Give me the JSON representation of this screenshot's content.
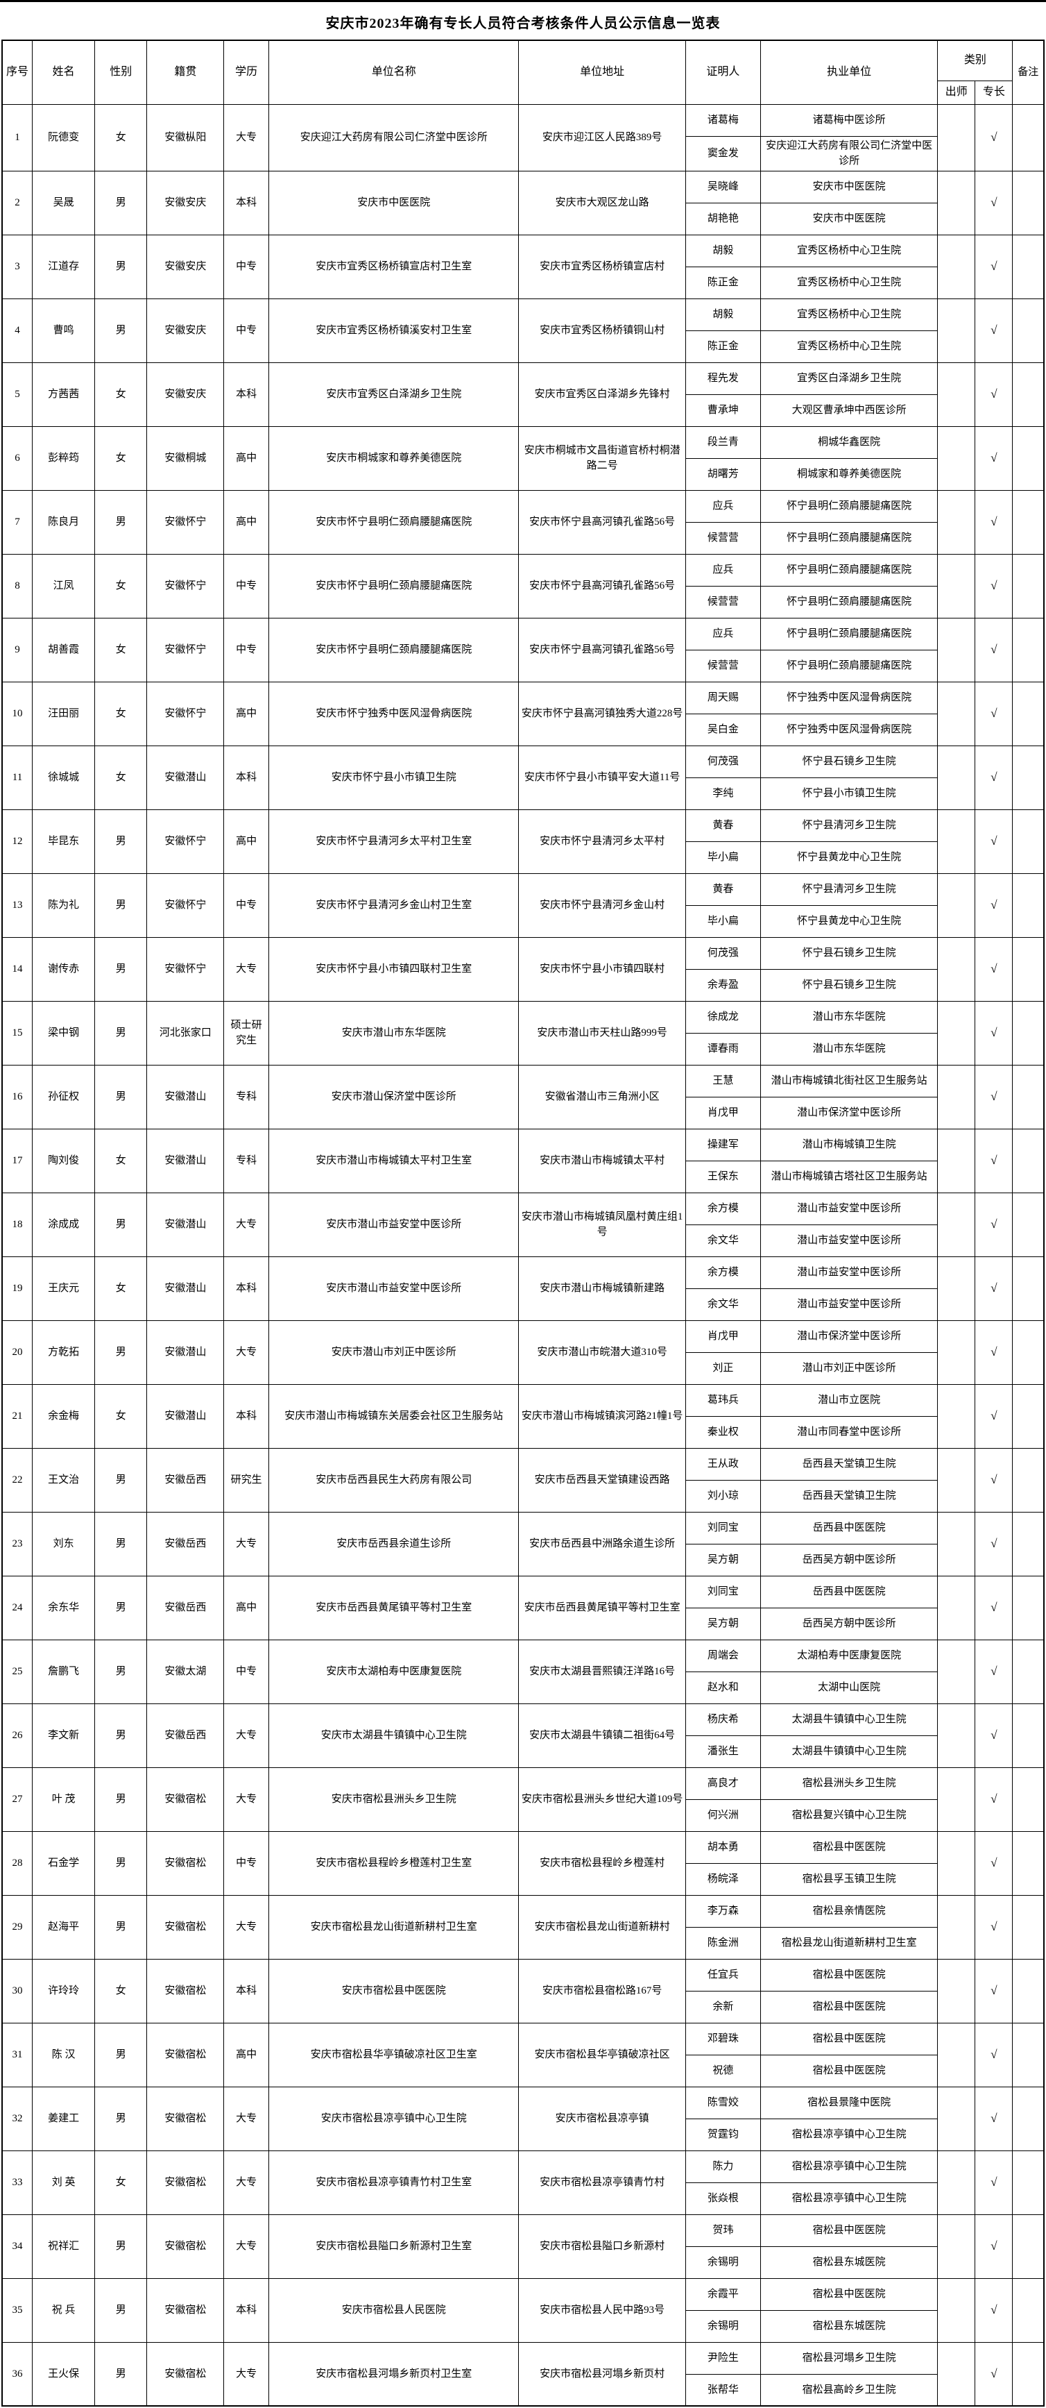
{
  "title": "安庆市2023年确有专长人员符合考核条件人员公示信息一览表",
  "check_mark": "√",
  "columns": {
    "no": "序号",
    "name": "姓名",
    "gender": "性别",
    "origin": "籍贯",
    "education": "学历",
    "unit": "单位名称",
    "address": "单位地址",
    "certifier": "证明人",
    "practice_org": "执业单位",
    "category": "类别",
    "chushi": "出师",
    "zhuanchang": "专长",
    "remark": "备注"
  },
  "rows": [
    {
      "no": "1",
      "name": "阮德变",
      "gender": "女",
      "origin": "安徽枞阳",
      "education": "大专",
      "unit": "安庆迎江大药房有限公司仁济堂中医诊所",
      "address": "安庆市迎江区人民路389号",
      "certs": [
        {
          "person": "诸葛梅",
          "org": "诸葛梅中医诊所"
        },
        {
          "person": "窦金发",
          "org": "安庆迎江大药房有限公司仁济堂中医诊所"
        }
      ],
      "chushi": "",
      "zhuanchang": "√",
      "remark": ""
    },
    {
      "no": "2",
      "name": "吴晟",
      "gender": "男",
      "origin": "安徽安庆",
      "education": "本科",
      "unit": "安庆市中医医院",
      "address": "安庆市大观区龙山路",
      "certs": [
        {
          "person": "吴晓峰",
          "org": "安庆市中医医院"
        },
        {
          "person": "胡艳艳",
          "org": "安庆市中医医院"
        }
      ],
      "chushi": "",
      "zhuanchang": "√",
      "remark": ""
    },
    {
      "no": "3",
      "name": "江道存",
      "gender": "男",
      "origin": "安徽安庆",
      "education": "中专",
      "unit": "安庆市宜秀区杨桥镇宣店村卫生室",
      "address": "安庆市宜秀区杨桥镇宣店村",
      "certs": [
        {
          "person": "胡毅",
          "org": "宜秀区杨桥中心卫生院"
        },
        {
          "person": "陈正金",
          "org": "宜秀区杨桥中心卫生院"
        }
      ],
      "chushi": "",
      "zhuanchang": "√",
      "remark": ""
    },
    {
      "no": "4",
      "name": "曹鸣",
      "gender": "男",
      "origin": "安徽安庆",
      "education": "中专",
      "unit": "安庆市宜秀区杨桥镇溪安村卫生室",
      "address": "安庆市宜秀区杨桥镇铜山村",
      "certs": [
        {
          "person": "胡毅",
          "org": "宜秀区杨桥中心卫生院"
        },
        {
          "person": "陈正金",
          "org": "宜秀区杨桥中心卫生院"
        }
      ],
      "chushi": "",
      "zhuanchang": "√",
      "remark": ""
    },
    {
      "no": "5",
      "name": "方茜茜",
      "gender": "女",
      "origin": "安徽安庆",
      "education": "本科",
      "unit": "安庆市宜秀区白泽湖乡卫生院",
      "address": "安庆市宜秀区白泽湖乡先锋村",
      "certs": [
        {
          "person": "程先发",
          "org": "宜秀区白泽湖乡卫生院"
        },
        {
          "person": "曹承坤",
          "org": "大观区曹承坤中西医诊所"
        }
      ],
      "chushi": "",
      "zhuanchang": "√",
      "remark": ""
    },
    {
      "no": "6",
      "name": "彭粹筠",
      "gender": "女",
      "origin": "安徽桐城",
      "education": "高中",
      "unit": "安庆市桐城家和尊养美德医院",
      "address": "安庆市桐城市文昌街道官桥村桐潜路二号",
      "certs": [
        {
          "person": "段兰青",
          "org": "桐城华鑫医院"
        },
        {
          "person": "胡曙芳",
          "org": "桐城家和尊养美德医院"
        }
      ],
      "chushi": "",
      "zhuanchang": "√",
      "remark": ""
    },
    {
      "no": "7",
      "name": "陈良月",
      "gender": "男",
      "origin": "安徽怀宁",
      "education": "高中",
      "unit": "安庆市怀宁县明仁颈肩腰腿痛医院",
      "address": "安庆市怀宁县高河镇孔雀路56号",
      "certs": [
        {
          "person": "应兵",
          "org": "怀宁县明仁颈肩腰腿痛医院"
        },
        {
          "person": "候营营",
          "org": "怀宁县明仁颈肩腰腿痛医院"
        }
      ],
      "chushi": "",
      "zhuanchang": "√",
      "remark": ""
    },
    {
      "no": "8",
      "name": "江凤",
      "gender": "女",
      "origin": "安徽怀宁",
      "education": "中专",
      "unit": "安庆市怀宁县明仁颈肩腰腿痛医院",
      "address": "安庆市怀宁县高河镇孔雀路56号",
      "certs": [
        {
          "person": "应兵",
          "org": "怀宁县明仁颈肩腰腿痛医院"
        },
        {
          "person": "候营营",
          "org": "怀宁县明仁颈肩腰腿痛医院"
        }
      ],
      "chushi": "",
      "zhuanchang": "√",
      "remark": ""
    },
    {
      "no": "9",
      "name": "胡善霞",
      "gender": "女",
      "origin": "安徽怀宁",
      "education": "中专",
      "unit": "安庆市怀宁县明仁颈肩腰腿痛医院",
      "address": "安庆市怀宁县高河镇孔雀路56号",
      "certs": [
        {
          "person": "应兵",
          "org": "怀宁县明仁颈肩腰腿痛医院"
        },
        {
          "person": "候营营",
          "org": "怀宁县明仁颈肩腰腿痛医院"
        }
      ],
      "chushi": "",
      "zhuanchang": "√",
      "remark": ""
    },
    {
      "no": "10",
      "name": "汪田丽",
      "gender": "女",
      "origin": "安徽怀宁",
      "education": "高中",
      "unit": "安庆市怀宁独秀中医风湿骨病医院",
      "address": "安庆市怀宁县高河镇独秀大道228号",
      "certs": [
        {
          "person": "周天赐",
          "org": "怀宁独秀中医风湿骨病医院"
        },
        {
          "person": "吴白金",
          "org": "怀宁独秀中医风湿骨病医院"
        }
      ],
      "chushi": "",
      "zhuanchang": "√",
      "remark": ""
    },
    {
      "no": "11",
      "name": "徐城城",
      "gender": "女",
      "origin": "安徽潜山",
      "education": "本科",
      "unit": "安庆市怀宁县小市镇卫生院",
      "address": "安庆市怀宁县小市镇平安大道11号",
      "certs": [
        {
          "person": "何茂强",
          "org": "怀宁县石镜乡卫生院"
        },
        {
          "person": "李纯",
          "org": "怀宁县小市镇卫生院"
        }
      ],
      "chushi": "",
      "zhuanchang": "√",
      "remark": ""
    },
    {
      "no": "12",
      "name": "毕昆东",
      "gender": "男",
      "origin": "安徽怀宁",
      "education": "高中",
      "unit": "安庆市怀宁县清河乡太平村卫生室",
      "address": "安庆市怀宁县清河乡太平村",
      "certs": [
        {
          "person": "黄春",
          "org": "怀宁县清河乡卫生院"
        },
        {
          "person": "毕小扁",
          "org": "怀宁县黄龙中心卫生院"
        }
      ],
      "chushi": "",
      "zhuanchang": "√",
      "remark": ""
    },
    {
      "no": "13",
      "name": "陈为礼",
      "gender": "男",
      "origin": "安徽怀宁",
      "education": "中专",
      "unit": "安庆市怀宁县清河乡金山村卫生室",
      "address": "安庆市怀宁县清河乡金山村",
      "certs": [
        {
          "person": "黄春",
          "org": "怀宁县清河乡卫生院"
        },
        {
          "person": "毕小扁",
          "org": "怀宁县黄龙中心卫生院"
        }
      ],
      "chushi": "",
      "zhuanchang": "√",
      "remark": ""
    },
    {
      "no": "14",
      "name": "谢传赤",
      "gender": "男",
      "origin": "安徽怀宁",
      "education": "大专",
      "unit": "安庆市怀宁县小市镇四联村卫生室",
      "address": "安庆市怀宁县小市镇四联村",
      "certs": [
        {
          "person": "何茂强",
          "org": "怀宁县石镜乡卫生院"
        },
        {
          "person": "余寿盈",
          "org": "怀宁县石镜乡卫生院"
        }
      ],
      "chushi": "",
      "zhuanchang": "√",
      "remark": ""
    },
    {
      "no": "15",
      "name": "梁中钢",
      "gender": "男",
      "origin": "河北张家口",
      "education": "硕士研究生",
      "unit": "安庆市潜山市东华医院",
      "address": "安庆市潜山市天柱山路999号",
      "certs": [
        {
          "person": "徐成龙",
          "org": "潜山市东华医院"
        },
        {
          "person": "谭春雨",
          "org": "潜山市东华医院"
        }
      ],
      "chushi": "",
      "zhuanchang": "√",
      "remark": ""
    },
    {
      "no": "16",
      "name": "孙征权",
      "gender": "男",
      "origin": "安徽潜山",
      "education": "专科",
      "unit": "安庆市潜山保济堂中医诊所",
      "address": "安徽省潜山市三角洲小区",
      "certs": [
        {
          "person": "王慧",
          "org": "潜山市梅城镇北街社区卫生服务站"
        },
        {
          "person": "肖戊甲",
          "org": "潜山市保济堂中医诊所"
        }
      ],
      "chushi": "",
      "zhuanchang": "√",
      "remark": ""
    },
    {
      "no": "17",
      "name": "陶刘俊",
      "gender": "女",
      "origin": "安徽潜山",
      "education": "专科",
      "unit": "安庆市潜山市梅城镇太平村卫生室",
      "address": "安庆市潜山市梅城镇太平村",
      "certs": [
        {
          "person": "操建军",
          "org": "潜山市梅城镇卫生院"
        },
        {
          "person": "王保东",
          "org": "潜山市梅城镇古塔社区卫生服务站"
        }
      ],
      "chushi": "",
      "zhuanchang": "√",
      "remark": ""
    },
    {
      "no": "18",
      "name": "涂成成",
      "gender": "男",
      "origin": "安徽潜山",
      "education": "大专",
      "unit": "安庆市潜山市益安堂中医诊所",
      "address": "安庆市潜山市梅城镇凤凰村黄庄组1号",
      "certs": [
        {
          "person": "余方模",
          "org": "潜山市益安堂中医诊所"
        },
        {
          "person": "余文华",
          "org": "潜山市益安堂中医诊所"
        }
      ],
      "chushi": "",
      "zhuanchang": "√",
      "remark": ""
    },
    {
      "no": "19",
      "name": "王庆元",
      "gender": "女",
      "origin": "安徽潜山",
      "education": "本科",
      "unit": "安庆市潜山市益安堂中医诊所",
      "address": "安庆市潜山市梅城镇新建路",
      "certs": [
        {
          "person": "余方模",
          "org": "潜山市益安堂中医诊所"
        },
        {
          "person": "余文华",
          "org": "潜山市益安堂中医诊所"
        }
      ],
      "chushi": "",
      "zhuanchang": "√",
      "remark": ""
    },
    {
      "no": "20",
      "name": "方乾拓",
      "gender": "男",
      "origin": "安徽潜山",
      "education": "大专",
      "unit": "安庆市潜山市刘正中医诊所",
      "address": "安庆市潜山市皖潜大道310号",
      "certs": [
        {
          "person": "肖戊甲",
          "org": "潜山市保济堂中医诊所"
        },
        {
          "person": "刘正",
          "org": "潜山市刘正中医诊所"
        }
      ],
      "chushi": "",
      "zhuanchang": "√",
      "remark": ""
    },
    {
      "no": "21",
      "name": "余金梅",
      "gender": "女",
      "origin": "安徽潜山",
      "education": "本科",
      "unit": "安庆市潜山市梅城镇东关居委会社区卫生服务站",
      "address": "安庆市潜山市梅城镇滨河路21幢1号",
      "certs": [
        {
          "person": "葛玮兵",
          "org": "潜山市立医院"
        },
        {
          "person": "秦业权",
          "org": "潜山市同春堂中医诊所"
        }
      ],
      "chushi": "",
      "zhuanchang": "√",
      "remark": ""
    },
    {
      "no": "22",
      "name": "王文治",
      "gender": "男",
      "origin": "安徽岳西",
      "education": "研究生",
      "unit": "安庆市岳西县民生大药房有限公司",
      "address": "安庆市岳西县天堂镇建设西路",
      "certs": [
        {
          "person": "王从政",
          "org": "岳西县天堂镇卫生院"
        },
        {
          "person": "刘小琼",
          "org": "岳西县天堂镇卫生院"
        }
      ],
      "chushi": "",
      "zhuanchang": "√",
      "remark": ""
    },
    {
      "no": "23",
      "name": "刘东",
      "gender": "男",
      "origin": "安徽岳西",
      "education": "大专",
      "unit": "安庆市岳西县余道生诊所",
      "address": "安庆市岳西县中洲路余道生诊所",
      "certs": [
        {
          "person": "刘同宝",
          "org": "岳西县中医医院"
        },
        {
          "person": "吴方朝",
          "org": "岳西吴方朝中医诊所"
        }
      ],
      "chushi": "",
      "zhuanchang": "√",
      "remark": ""
    },
    {
      "no": "24",
      "name": "余东华",
      "gender": "男",
      "origin": "安徽岳西",
      "education": "高中",
      "unit": "安庆市岳西县黄尾镇平等村卫生室",
      "address": "安庆市岳西县黄尾镇平等村卫生室",
      "certs": [
        {
          "person": "刘同宝",
          "org": "岳西县中医医院"
        },
        {
          "person": "吴方朝",
          "org": "岳西吴方朝中医诊所"
        }
      ],
      "chushi": "",
      "zhuanchang": "√",
      "remark": ""
    },
    {
      "no": "25",
      "name": "詹鹏飞",
      "gender": "男",
      "origin": "安徽太湖",
      "education": "中专",
      "unit": "安庆市太湖柏寿中医康复医院",
      "address": "安庆市太湖县晋熙镇汪洋路16号",
      "certs": [
        {
          "person": "周端会",
          "org": "太湖柏寿中医康复医院"
        },
        {
          "person": "赵水和",
          "org": "太湖中山医院"
        }
      ],
      "chushi": "",
      "zhuanchang": "√",
      "remark": ""
    },
    {
      "no": "26",
      "name": "李文新",
      "gender": "男",
      "origin": "安徽岳西",
      "education": "大专",
      "unit": "安庆市太湖县牛镇镇中心卫生院",
      "address": "安庆市太湖县牛镇镇二祖街64号",
      "certs": [
        {
          "person": "杨庆希",
          "org": "太湖县牛镇镇中心卫生院"
        },
        {
          "person": "潘张生",
          "org": "太湖县牛镇镇中心卫生院"
        }
      ],
      "chushi": "",
      "zhuanchang": "√",
      "remark": ""
    },
    {
      "no": "27",
      "name": "叶 茂",
      "gender": "男",
      "origin": "安徽宿松",
      "education": "大专",
      "unit": "安庆市宿松县洲头乡卫生院",
      "address": "安庆市宿松县洲头乡世纪大道109号",
      "certs": [
        {
          "person": "高良才",
          "org": "宿松县洲头乡卫生院"
        },
        {
          "person": "何兴洲",
          "org": "宿松县复兴镇中心卫生院"
        }
      ],
      "chushi": "",
      "zhuanchang": "√",
      "remark": ""
    },
    {
      "no": "28",
      "name": "石金学",
      "gender": "男",
      "origin": "安徽宿松",
      "education": "中专",
      "unit": "安庆市宿松县程岭乡橙莲村卫生室",
      "address": "安庆市宿松县程岭乡橙莲村",
      "certs": [
        {
          "person": "胡本勇",
          "org": "宿松县中医医院"
        },
        {
          "person": "杨皖泽",
          "org": "宿松县孚玉镇卫生院"
        }
      ],
      "chushi": "",
      "zhuanchang": "√",
      "remark": ""
    },
    {
      "no": "29",
      "name": "赵海平",
      "gender": "男",
      "origin": "安徽宿松",
      "education": "大专",
      "unit": "安庆市宿松县龙山街道新耕村卫生室",
      "address": "安庆市宿松县龙山街道新耕村",
      "certs": [
        {
          "person": "李万森",
          "org": "宿松县亲情医院"
        },
        {
          "person": "陈金洲",
          "org": "宿松县龙山街道新耕村卫生室"
        }
      ],
      "chushi": "",
      "zhuanchang": "√",
      "remark": ""
    },
    {
      "no": "30",
      "name": "许玲玲",
      "gender": "女",
      "origin": "安徽宿松",
      "education": "本科",
      "unit": "安庆市宿松县中医医院",
      "address": "安庆市宿松县宿松路167号",
      "certs": [
        {
          "person": "任宜兵",
          "org": "宿松县中医医院"
        },
        {
          "person": "余新",
          "org": "宿松县中医医院"
        }
      ],
      "chushi": "",
      "zhuanchang": "√",
      "remark": ""
    },
    {
      "no": "31",
      "name": "陈 汉",
      "gender": "男",
      "origin": "安徽宿松",
      "education": "高中",
      "unit": "安庆市宿松县华亭镇破凉社区卫生室",
      "address": "安庆市宿松县华亭镇破凉社区",
      "certs": [
        {
          "person": "邓碧珠",
          "org": "宿松县中医医院"
        },
        {
          "person": "祝德",
          "org": "宿松县中医医院"
        }
      ],
      "chushi": "",
      "zhuanchang": "√",
      "remark": ""
    },
    {
      "no": "32",
      "name": "姜建工",
      "gender": "男",
      "origin": "安徽宿松",
      "education": "大专",
      "unit": "安庆市宿松县凉亭镇中心卫生院",
      "address": "安庆市宿松县凉亭镇",
      "certs": [
        {
          "person": "陈雪姣",
          "org": "宿松县景隆中医院"
        },
        {
          "person": "贺霆钧",
          "org": "宿松县凉亭镇中心卫生院"
        }
      ],
      "chushi": "",
      "zhuanchang": "√",
      "remark": ""
    },
    {
      "no": "33",
      "name": "刘 英",
      "gender": "女",
      "origin": "安徽宿松",
      "education": "大专",
      "unit": "安庆市宿松县凉亭镇青竹村卫生室",
      "address": "安庆市宿松县凉亭镇青竹村",
      "certs": [
        {
          "person": "陈力",
          "org": "宿松县凉亭镇中心卫生院"
        },
        {
          "person": "张焱根",
          "org": "宿松县凉亭镇中心卫生院"
        }
      ],
      "chushi": "",
      "zhuanchang": "√",
      "remark": ""
    },
    {
      "no": "34",
      "name": "祝祥汇",
      "gender": "男",
      "origin": "安徽宿松",
      "education": "大专",
      "unit": "安庆市宿松县隘口乡新源村卫生室",
      "address": "安庆市宿松县隘口乡新源村",
      "certs": [
        {
          "person": "贺玮",
          "org": "宿松县中医医院"
        },
        {
          "person": "余锡明",
          "org": "宿松县东城医院"
        }
      ],
      "chushi": "",
      "zhuanchang": "√",
      "remark": ""
    },
    {
      "no": "35",
      "name": "祝 兵",
      "gender": "男",
      "origin": "安徽宿松",
      "education": "本科",
      "unit": "安庆市宿松县人民医院",
      "address": "安庆市宿松县人民中路93号",
      "certs": [
        {
          "person": "余霞平",
          "org": "宿松县中医医院"
        },
        {
          "person": "余锡明",
          "org": "宿松县东城医院"
        }
      ],
      "chushi": "",
      "zhuanchang": "√",
      "remark": ""
    },
    {
      "no": "36",
      "name": "王火保",
      "gender": "男",
      "origin": "安徽宿松",
      "education": "大专",
      "unit": "安庆市宿松县河塌乡新页村卫生室",
      "address": "安庆市宿松县河塌乡新页村",
      "certs": [
        {
          "person": "尹险生",
          "org": "宿松县河塌乡卫生院"
        },
        {
          "person": "张帮华",
          "org": "宿松县高岭乡卫生院"
        }
      ],
      "chushi": "",
      "zhuanchang": "√",
      "remark": ""
    }
  ]
}
